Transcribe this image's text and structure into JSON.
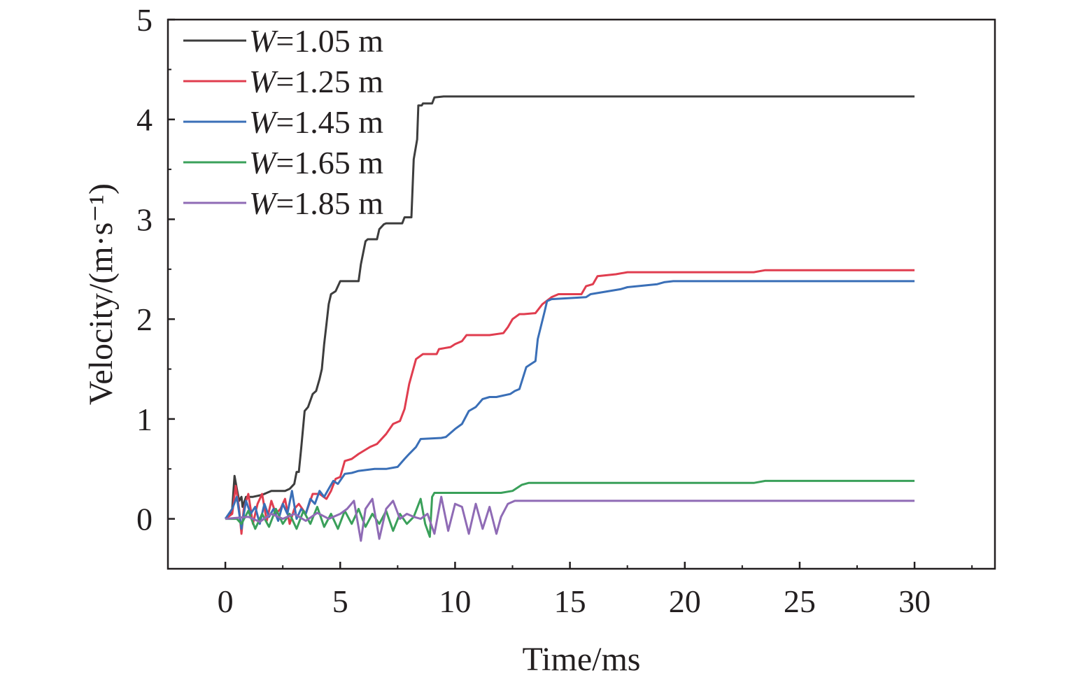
{
  "chart_data": {
    "type": "line",
    "title": "",
    "xlabel": "Time/ms",
    "ylabel": "Velocity/(m·s⁻¹)",
    "xlim": [
      -2.5,
      33.5
    ],
    "ylim": [
      -0.5,
      5
    ],
    "xticks": [
      0,
      5,
      10,
      15,
      20,
      25,
      30
    ],
    "yticks": [
      0,
      1,
      2,
      3,
      4,
      5
    ],
    "xtick_labels": [
      "0",
      "5",
      "10",
      "15",
      "20",
      "25",
      "30"
    ],
    "ytick_labels": [
      "0",
      "1",
      "2",
      "3",
      "4",
      "5"
    ],
    "grid": false,
    "legend_position": "top-left",
    "series": [
      {
        "name": "W=1.05 m",
        "legend_var": "W",
        "legend_rest": "=1.05 m",
        "color": "#3d3d3d",
        "x": [
          0,
          0.2,
          0.3,
          0.4,
          0.5,
          0.6,
          0.7,
          0.75,
          0.9,
          1.2,
          1.6,
          2.0,
          2.6,
          2.8,
          3.0,
          3.1,
          3.2,
          3.3,
          3.45,
          3.6,
          3.8,
          3.95,
          4.1,
          4.2,
          4.3,
          4.4,
          4.5,
          4.6,
          4.8,
          5.0,
          5.2,
          5.8,
          5.9,
          6.1,
          6.2,
          6.6,
          6.7,
          6.9,
          7.0,
          7.7,
          7.8,
          8.1,
          8.2,
          8.35,
          8.4,
          8.55,
          8.6,
          9.0,
          9.1,
          9.5,
          30
        ],
        "y": [
          0,
          0.05,
          0.1,
          0.43,
          0.3,
          0.18,
          0.22,
          0.12,
          0.22,
          0.22,
          0.24,
          0.28,
          0.28,
          0.3,
          0.35,
          0.47,
          0.47,
          0.7,
          1.08,
          1.12,
          1.25,
          1.28,
          1.4,
          1.5,
          1.75,
          1.95,
          2.15,
          2.25,
          2.28,
          2.38,
          2.38,
          2.38,
          2.55,
          2.78,
          2.8,
          2.8,
          2.9,
          2.95,
          2.96,
          2.96,
          3.02,
          3.02,
          3.6,
          3.8,
          4.14,
          4.14,
          4.16,
          4.16,
          4.22,
          4.23,
          4.23
        ]
      },
      {
        "name": "W=1.25 m",
        "legend_var": "W",
        "legend_rest": "=1.25 m",
        "color": "#e03d4f",
        "x": [
          0,
          0.3,
          0.45,
          0.6,
          0.7,
          0.8,
          1.0,
          1.2,
          1.4,
          1.6,
          1.8,
          2.0,
          2.2,
          2.4,
          2.6,
          2.8,
          3.0,
          3.2,
          3.5,
          3.8,
          4.1,
          4.4,
          4.6,
          4.8,
          5.0,
          5.2,
          5.5,
          5.8,
          6.3,
          6.6,
          7.0,
          7.3,
          7.6,
          7.8,
          8.0,
          8.3,
          8.6,
          9.2,
          9.3,
          9.8,
          10.0,
          10.3,
          10.5,
          11.5,
          12.1,
          12.3,
          12.5,
          12.8,
          13.0,
          13.5,
          13.8,
          14.2,
          14.5,
          15.5,
          15.7,
          16.0,
          16.2,
          17.0,
          17.5,
          18.0,
          23.0,
          23.5,
          30
        ],
        "y": [
          0,
          0.05,
          0.33,
          0.1,
          -0.15,
          0.1,
          0.25,
          -0.05,
          0.15,
          0.25,
          -0.02,
          0.18,
          0.05,
          0.1,
          0.2,
          -0.05,
          0.1,
          0.15,
          0.05,
          0.25,
          0.25,
          0.2,
          0.28,
          0.4,
          0.42,
          0.58,
          0.6,
          0.65,
          0.72,
          0.75,
          0.85,
          0.95,
          0.98,
          1.1,
          1.35,
          1.6,
          1.65,
          1.65,
          1.7,
          1.72,
          1.75,
          1.78,
          1.84,
          1.84,
          1.86,
          1.92,
          2.0,
          2.05,
          2.05,
          2.06,
          2.15,
          2.22,
          2.25,
          2.25,
          2.33,
          2.35,
          2.43,
          2.45,
          2.47,
          2.47,
          2.47,
          2.49,
          2.49
        ]
      },
      {
        "name": "W=1.45 m",
        "legend_var": "W",
        "legend_rest": "=1.45 m",
        "color": "#3a6fb7",
        "x": [
          0,
          0.3,
          0.5,
          0.7,
          0.9,
          1.1,
          1.3,
          1.5,
          1.7,
          1.9,
          2.1,
          2.3,
          2.5,
          2.7,
          2.9,
          3.1,
          3.3,
          3.5,
          3.7,
          3.9,
          4.1,
          4.3,
          4.5,
          4.7,
          4.9,
          5.2,
          5.5,
          5.8,
          6.5,
          7.0,
          7.5,
          7.8,
          8.0,
          8.3,
          8.5,
          9.4,
          9.6,
          10.0,
          10.3,
          10.6,
          10.9,
          11.2,
          11.5,
          11.8,
          12.4,
          12.6,
          12.8,
          13.1,
          13.3,
          13.5,
          13.6,
          13.9,
          14.0,
          14.2,
          15.7,
          15.9,
          17.2,
          17.5,
          18.8,
          19.1,
          19.5,
          30
        ],
        "y": [
          0,
          0.1,
          0.22,
          -0.1,
          0.18,
          0.05,
          0.12,
          -0.05,
          0.15,
          0.02,
          0.1,
          -0.02,
          0.15,
          0.05,
          0.28,
          0.0,
          0.1,
          0.05,
          0.2,
          0.15,
          0.28,
          0.22,
          0.3,
          0.38,
          0.35,
          0.45,
          0.46,
          0.48,
          0.5,
          0.5,
          0.52,
          0.6,
          0.65,
          0.72,
          0.8,
          0.81,
          0.82,
          0.9,
          0.95,
          1.08,
          1.12,
          1.2,
          1.22,
          1.22,
          1.25,
          1.28,
          1.3,
          1.52,
          1.55,
          1.58,
          1.8,
          2.08,
          2.18,
          2.2,
          2.22,
          2.25,
          2.3,
          2.32,
          2.35,
          2.37,
          2.38,
          2.38
        ]
      },
      {
        "name": "W=1.65 m",
        "legend_var": "W",
        "legend_rest": "=1.65 m",
        "color": "#3aa05a",
        "x": [
          0,
          0.5,
          0.7,
          1.0,
          1.3,
          1.6,
          1.9,
          2.2,
          2.5,
          2.8,
          3.1,
          3.4,
          3.7,
          4.0,
          4.3,
          4.6,
          4.9,
          5.2,
          5.5,
          5.8,
          6.1,
          6.4,
          6.7,
          7.0,
          7.3,
          7.6,
          7.9,
          8.2,
          8.5,
          8.7,
          8.9,
          9.0,
          9.1,
          12.0,
          12.5,
          12.9,
          13.2,
          23.0,
          23.5,
          30
        ],
        "y": [
          0,
          0.0,
          -0.05,
          0.08,
          -0.1,
          0.05,
          -0.08,
          0.1,
          -0.05,
          0.05,
          -0.1,
          0.08,
          -0.05,
          0.12,
          -0.08,
          0.05,
          -0.1,
          0.08,
          -0.05,
          0.1,
          -0.08,
          0.05,
          -0.05,
          0.08,
          -0.12,
          0.05,
          -0.05,
          0.02,
          0.2,
          -0.05,
          -0.18,
          0.22,
          0.26,
          0.26,
          0.28,
          0.34,
          0.36,
          0.36,
          0.38,
          0.38
        ]
      },
      {
        "name": "W=1.85 m",
        "legend_var": "W",
        "legend_rest": "=1.85 m",
        "color": "#8f6bb5",
        "x": [
          0,
          1.0,
          1.5,
          2.0,
          2.5,
          3.0,
          3.5,
          4.0,
          4.5,
          5.0,
          5.3,
          5.6,
          5.9,
          6.1,
          6.4,
          6.7,
          7.0,
          7.3,
          7.6,
          7.9,
          8.2,
          8.5,
          8.8,
          9.1,
          9.4,
          9.7,
          10.0,
          10.3,
          10.6,
          10.9,
          11.2,
          11.5,
          11.8,
          12.0,
          12.3,
          12.6,
          30
        ],
        "y": [
          0,
          0.02,
          -0.03,
          0.05,
          0.0,
          0.05,
          -0.02,
          0.06,
          0.0,
          0.05,
          0.1,
          0.18,
          -0.22,
          0.1,
          0.2,
          -0.2,
          0.1,
          0.18,
          0.0,
          0.05,
          0.02,
          0.0,
          0.05,
          -0.15,
          0.22,
          -0.12,
          0.15,
          0.12,
          -0.15,
          0.15,
          -0.1,
          0.12,
          -0.15,
          0.02,
          0.15,
          0.18,
          0.18
        ]
      }
    ]
  }
}
